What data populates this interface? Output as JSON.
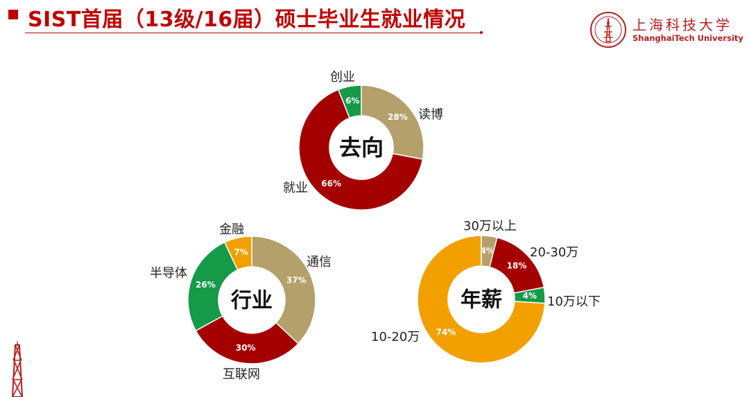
{
  "header": {
    "title": "SIST首届（13级/16届）硕士毕业生就业情况",
    "logo_cn": "上海科技大学",
    "logo_en": "ShanghaiTech University",
    "accent_color": "#c00000"
  },
  "chart_data": [
    {
      "type": "pie",
      "variant": "donut",
      "center_label": "去向",
      "slices": [
        {
          "label": "读博",
          "value": 28,
          "text": "28%",
          "color": "#b3a06a"
        },
        {
          "label": "就业",
          "value": 66,
          "text": "66%",
          "color": "#a50000"
        },
        {
          "label": "创业",
          "value": 6,
          "text": "6%",
          "color": "#159a48"
        }
      ]
    },
    {
      "type": "pie",
      "variant": "donut",
      "center_label": "行业",
      "slices": [
        {
          "label": "通信",
          "value": 37,
          "text": "37%",
          "color": "#b3a06a"
        },
        {
          "label": "互联网",
          "value": 30,
          "text": "30%",
          "color": "#a50000"
        },
        {
          "label": "半导体",
          "value": 26,
          "text": "26%",
          "color": "#159a48"
        },
        {
          "label": "金融",
          "value": 7,
          "text": "7%",
          "color": "#f2a000"
        }
      ]
    },
    {
      "type": "pie",
      "variant": "donut",
      "center_label": "年薪",
      "slices": [
        {
          "label": "30万以上",
          "value": 4,
          "text": "4%",
          "color": "#b3a06a"
        },
        {
          "label": "20-30万",
          "value": 18,
          "text": "18%",
          "color": "#a50000"
        },
        {
          "label": "10万以下",
          "value": 4,
          "text": "4%",
          "color": "#159a48"
        },
        {
          "label": "10-20万",
          "value": 74,
          "text": "74%",
          "color": "#f2a000"
        }
      ]
    }
  ]
}
